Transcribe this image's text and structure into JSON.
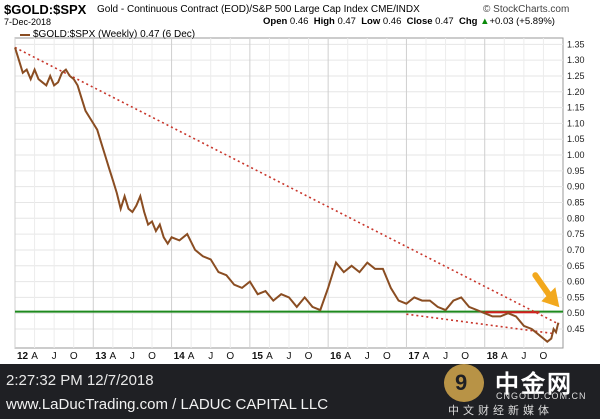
{
  "header": {
    "symbol": "$GOLD:$SPX",
    "description": "Gold - Continuous Contract (EOD)/S&P 500 Large Cap Index  CME/INDX",
    "source": "© StockCharts.com",
    "date": "7-Dec-2018",
    "open_label": "Open",
    "open": "0.46",
    "high_label": "High",
    "high": "0.47",
    "low_label": "Low",
    "low": "0.46",
    "close_label": "Close",
    "close": "0.47",
    "chg_label": "Chg",
    "chg": "+0.03 (+5.89%)",
    "chg_arrow": "▲"
  },
  "legend": {
    "text": "$GOLD:$SPX (Weekly) 0.47 (6 Dec)"
  },
  "footer": {
    "timestamp": "2:27:32 PM 12/7/2018",
    "credit": "www.LaDucTrading.com / LADUC CAPITAL LLC"
  },
  "watermark": {
    "brand": "中金网",
    "url": "CNGOLD.COM.CN",
    "media": "中文财经新媒体",
    "logo_glyph": "9"
  },
  "colors": {
    "series": "#8a4d22",
    "support": "#1e8a1e",
    "resistance": "#d61f1f",
    "trend": "#c8352a",
    "arrow": "#f2a81d"
  },
  "chart_data": {
    "type": "line",
    "title": "$GOLD:$SPX",
    "xlabel": "",
    "ylabel": "",
    "ylim": [
      0.39,
      1.37
    ],
    "xlim": [
      2012.0,
      2019.0
    ],
    "grid": true,
    "legend_position": "top-left",
    "y_ticks": [
      "1.35",
      "1.30",
      "1.25",
      "1.20",
      "1.15",
      "1.10",
      "1.05",
      "1.00",
      "0.95",
      "0.90",
      "0.85",
      "0.80",
      "0.75",
      "0.70",
      "0.65",
      "0.60",
      "0.55",
      "0.50",
      "0.45"
    ],
    "x_ticks": [
      {
        "label": "12",
        "x": 2012.0,
        "year": true
      },
      {
        "label": "A",
        "x": 2012.25
      },
      {
        "label": "J",
        "x": 2012.5
      },
      {
        "label": "O",
        "x": 2012.75
      },
      {
        "label": "13",
        "x": 2013.0,
        "year": true
      },
      {
        "label": "A",
        "x": 2013.25
      },
      {
        "label": "J",
        "x": 2013.5
      },
      {
        "label": "O",
        "x": 2013.75
      },
      {
        "label": "14",
        "x": 2014.0,
        "year": true
      },
      {
        "label": "A",
        "x": 2014.25
      },
      {
        "label": "J",
        "x": 2014.5
      },
      {
        "label": "O",
        "x": 2014.75
      },
      {
        "label": "15",
        "x": 2015.0,
        "year": true
      },
      {
        "label": "A",
        "x": 2015.25
      },
      {
        "label": "J",
        "x": 2015.5
      },
      {
        "label": "O",
        "x": 2015.75
      },
      {
        "label": "16",
        "x": 2016.0,
        "year": true
      },
      {
        "label": "A",
        "x": 2016.25
      },
      {
        "label": "J",
        "x": 2016.5
      },
      {
        "label": "O",
        "x": 2016.75
      },
      {
        "label": "17",
        "x": 2017.0,
        "year": true
      },
      {
        "label": "A",
        "x": 2017.25
      },
      {
        "label": "J",
        "x": 2017.5
      },
      {
        "label": "O",
        "x": 2017.75
      },
      {
        "label": "18",
        "x": 2018.0,
        "year": true
      },
      {
        "label": "A",
        "x": 2018.25
      },
      {
        "label": "J",
        "x": 2018.5
      },
      {
        "label": "O",
        "x": 2018.75
      }
    ],
    "series": [
      {
        "x": [
          2012.0,
          2012.05,
          2012.1,
          2012.15,
          2012.2,
          2012.25,
          2012.3,
          2012.35,
          2012.4,
          2012.45,
          2012.5,
          2012.55,
          2012.6,
          2012.65,
          2012.7,
          2012.75,
          2012.8,
          2012.85,
          2012.9,
          2012.95,
          2013.0,
          2013.05,
          2013.1,
          2013.15,
          2013.2,
          2013.25,
          2013.3,
          2013.35,
          2013.4,
          2013.45,
          2013.5,
          2013.55,
          2013.6,
          2013.65,
          2013.7,
          2013.75,
          2013.8,
          2013.85,
          2013.9,
          2013.95,
          2014.0,
          2014.1,
          2014.2,
          2014.3,
          2014.4,
          2014.5,
          2014.6,
          2014.7,
          2014.8,
          2014.9,
          2015.0,
          2015.1,
          2015.2,
          2015.3,
          2015.4,
          2015.5,
          2015.6,
          2015.7,
          2015.8,
          2015.9,
          2016.0,
          2016.1,
          2016.2,
          2016.3,
          2016.4,
          2016.5,
          2016.6,
          2016.7,
          2016.8,
          2016.9,
          2017.0,
          2017.1,
          2017.2,
          2017.3,
          2017.4,
          2017.5,
          2017.6,
          2017.7,
          2017.8,
          2017.9,
          2018.0,
          2018.1,
          2018.2,
          2018.3,
          2018.4,
          2018.5,
          2018.6,
          2018.7,
          2018.75,
          2018.8,
          2018.85,
          2018.88,
          2018.91,
          2018.94
        ],
        "values": [
          1.34,
          1.3,
          1.26,
          1.27,
          1.24,
          1.27,
          1.24,
          1.23,
          1.22,
          1.25,
          1.22,
          1.23,
          1.26,
          1.27,
          1.25,
          1.24,
          1.22,
          1.18,
          1.14,
          1.12,
          1.1,
          1.08,
          1.04,
          1.0,
          0.96,
          0.92,
          0.88,
          0.83,
          0.87,
          0.83,
          0.82,
          0.84,
          0.87,
          0.82,
          0.78,
          0.79,
          0.76,
          0.78,
          0.74,
          0.72,
          0.74,
          0.73,
          0.75,
          0.7,
          0.68,
          0.67,
          0.63,
          0.62,
          0.59,
          0.58,
          0.6,
          0.56,
          0.57,
          0.54,
          0.56,
          0.55,
          0.52,
          0.55,
          0.52,
          0.51,
          0.58,
          0.66,
          0.63,
          0.65,
          0.63,
          0.66,
          0.64,
          0.64,
          0.58,
          0.54,
          0.53,
          0.55,
          0.54,
          0.54,
          0.52,
          0.51,
          0.54,
          0.55,
          0.52,
          0.51,
          0.5,
          0.49,
          0.49,
          0.5,
          0.49,
          0.46,
          0.45,
          0.43,
          0.42,
          0.41,
          0.42,
          0.45,
          0.44,
          0.47
        ]
      }
    ],
    "reference_lines": [
      {
        "kind": "support",
        "style": "solid",
        "color": "green",
        "x1": 2012.0,
        "y1": 0.505,
        "x2": 2019.0,
        "y2": 0.505
      },
      {
        "kind": "resistance",
        "style": "solid",
        "color": "red",
        "x1": 2018.0,
        "y1": 0.503,
        "x2": 2018.7,
        "y2": 0.503
      },
      {
        "kind": "trendline",
        "style": "dotted",
        "x1": 2012.0,
        "y1": 1.34,
        "x2": 2018.95,
        "y2": 0.465
      },
      {
        "kind": "trendline",
        "style": "dotted",
        "x1": 2017.0,
        "y1": 0.497,
        "x2": 2018.9,
        "y2": 0.435
      }
    ],
    "annotation_arrow": {
      "x": 2018.8,
      "y": 0.5,
      "color": "orange",
      "direction": "down-right"
    }
  }
}
